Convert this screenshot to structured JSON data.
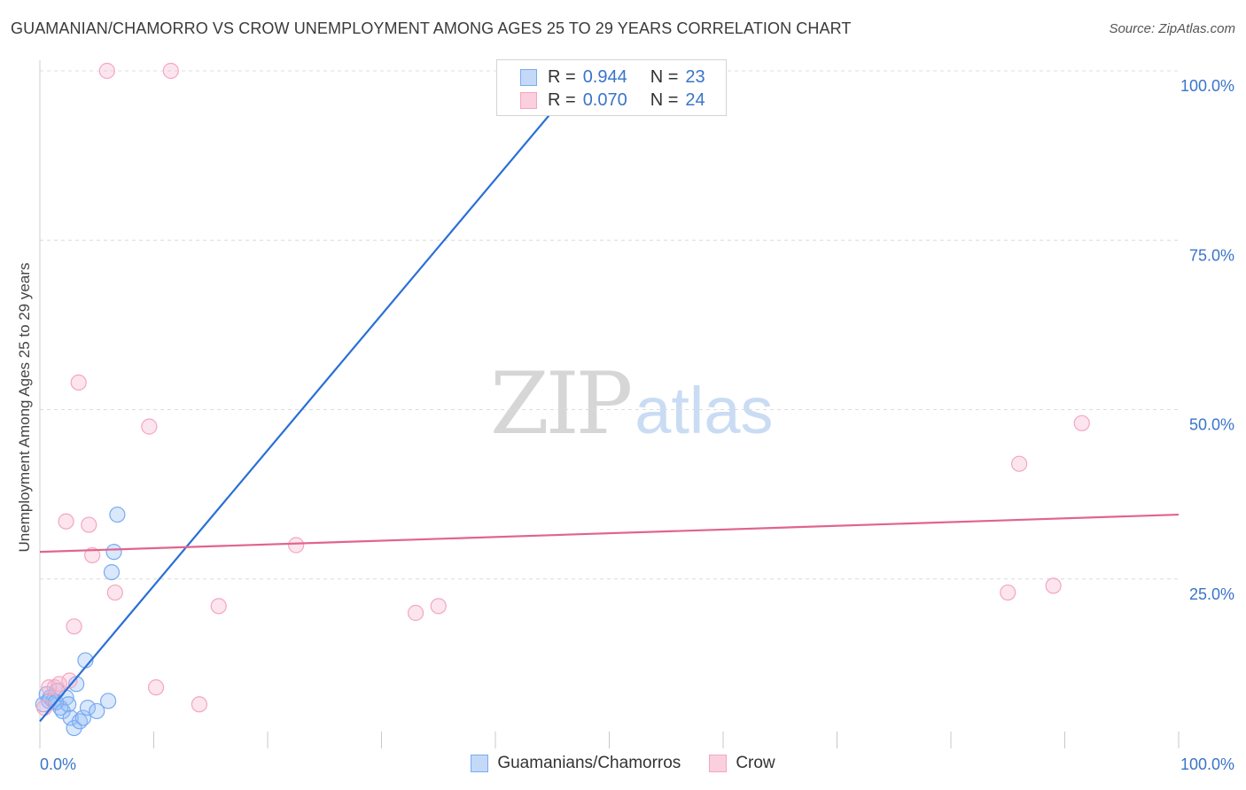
{
  "chart_data": {
    "type": "scatter",
    "title": "GUAMANIAN/CHAMORRO VS CROW UNEMPLOYMENT AMONG AGES 25 TO 29 YEARS CORRELATION CHART",
    "source": "Source: ZipAtlas.com",
    "xlabel": "",
    "ylabel": "Unemployment Among Ages 25 to 29 years",
    "xlim": [
      0,
      100
    ],
    "ylim": [
      0,
      100
    ],
    "x_tick_labels": {
      "min": "0.0%",
      "max": "100.0%"
    },
    "y_ticks": [
      {
        "value": 25,
        "label": "25.0%"
      },
      {
        "value": 50,
        "label": "50.0%"
      },
      {
        "value": 75,
        "label": "75.0%"
      },
      {
        "value": 100,
        "label": "100.0%"
      }
    ],
    "grid": true,
    "legend_position": "top-center",
    "series": [
      {
        "name": "Guamanians/Chamorros",
        "color": "#7aaaf0",
        "line_color": "#2a6fd6",
        "r_label": "R =",
        "r_value": "0.944",
        "n_label": "N =",
        "n_value": "23",
        "points": [
          [
            0.3,
            6.5
          ],
          [
            0.6,
            8.0
          ],
          [
            0.9,
            7.5
          ],
          [
            1.2,
            7.0
          ],
          [
            1.5,
            8.5
          ],
          [
            1.8,
            6.0
          ],
          [
            2.0,
            5.5
          ],
          [
            2.3,
            7.5
          ],
          [
            2.5,
            6.5
          ],
          [
            2.7,
            4.5
          ],
          [
            3.0,
            3.0
          ],
          [
            3.2,
            9.5
          ],
          [
            3.5,
            4.0
          ],
          [
            3.8,
            4.5
          ],
          [
            4.0,
            13.0
          ],
          [
            4.2,
            6.0
          ],
          [
            5.0,
            5.5
          ],
          [
            6.0,
            7.0
          ],
          [
            6.3,
            26.0
          ],
          [
            6.5,
            29.0
          ],
          [
            6.8,
            34.5
          ],
          [
            0.8,
            7.0
          ],
          [
            1.4,
            6.8
          ]
        ],
        "trend": {
          "x0": 0,
          "y0": 4,
          "x1": 48,
          "y1": 100
        }
      },
      {
        "name": "Crow",
        "color": "#f4a6bf",
        "line_color": "#e0648e",
        "r_label": "R =",
        "r_value": "0.070",
        "n_label": "N =",
        "n_value": "24",
        "points": [
          [
            0.4,
            6.0
          ],
          [
            0.8,
            9.0
          ],
          [
            1.3,
            9.0
          ],
          [
            1.7,
            9.5
          ],
          [
            2.3,
            33.5
          ],
          [
            2.6,
            10.0
          ],
          [
            3.0,
            18.0
          ],
          [
            3.4,
            54.0
          ],
          [
            4.3,
            33.0
          ],
          [
            4.6,
            28.5
          ],
          [
            5.9,
            100.0
          ],
          [
            6.6,
            23.0
          ],
          [
            9.6,
            47.5
          ],
          [
            10.2,
            9.0
          ],
          [
            11.5,
            100.0
          ],
          [
            14.0,
            6.5
          ],
          [
            15.7,
            21.0
          ],
          [
            22.5,
            30.0
          ],
          [
            33.0,
            20.0
          ],
          [
            35.0,
            21.0
          ],
          [
            85.0,
            23.0
          ],
          [
            86.0,
            42.0
          ],
          [
            89.0,
            24.0
          ],
          [
            91.5,
            48.0
          ]
        ],
        "trend": {
          "x0": 0,
          "y0": 29,
          "x1": 100,
          "y1": 34.5
        }
      }
    ]
  },
  "watermark": {
    "zip": "ZIP",
    "atlas": "atlas"
  }
}
